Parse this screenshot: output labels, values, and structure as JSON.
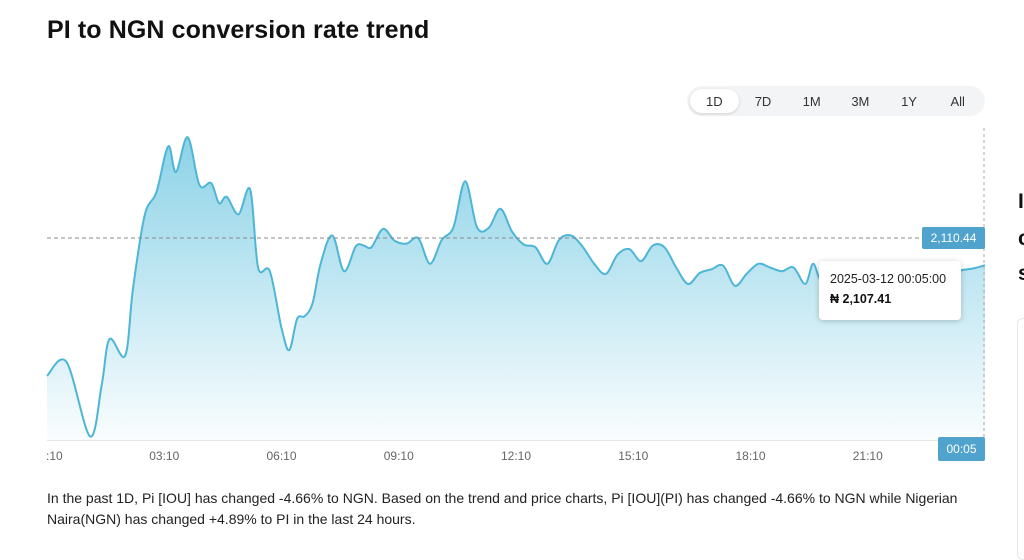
{
  "page": {
    "title": "PI to NGN conversion rate trend"
  },
  "range_tabs": [
    {
      "label": "1D",
      "active": true
    },
    {
      "label": "7D",
      "active": false
    },
    {
      "label": "1M",
      "active": false
    },
    {
      "label": "3M",
      "active": false
    },
    {
      "label": "1Y",
      "active": false
    },
    {
      "label": "All",
      "active": false
    }
  ],
  "tooltip": {
    "time": "2025-03-12 00:05:00",
    "value": "₦ 2,107.41"
  },
  "current_price_label": "2,110.44",
  "current_time_label": "00:05",
  "summary": "In the past 1D, Pi [IOU] has changed -4.66% to NGN. Based on the trend and price charts, Pi [IOU](PI) has changed -4.66% to NGN while Nigerian Naira(NGN) has changed +4.89% to PI in the last 24 hours.",
  "side_glyphs": [
    "I",
    "c",
    "s"
  ],
  "colors": {
    "line": "#4db6d6",
    "fill_top": "#86d0e6",
    "badge": "#4fa3cc"
  },
  "chart_data": {
    "type": "area",
    "title": "PI to NGN conversion rate trend",
    "xlabel": "",
    "ylabel": "",
    "x_tick_labels": [
      ":10",
      "03:10",
      "06:10",
      "09:10",
      "12:10",
      "15:10",
      "18:10",
      "21:10"
    ],
    "ylim": [
      1920,
      2260
    ],
    "current_value": 2110.44,
    "grid": false,
    "series": [
      {
        "name": "",
        "x": [
          0.0,
          0.5,
          1.1,
          1.4,
          1.6,
          2.0,
          2.2,
          2.5,
          2.8,
          3.1,
          3.3,
          3.6,
          3.9,
          4.2,
          4.4,
          4.6,
          4.9,
          5.2,
          5.4,
          5.7,
          6.0,
          6.2,
          6.4,
          6.6,
          6.8,
          7.0,
          7.3,
          7.6,
          7.9,
          8.1,
          8.3,
          8.6,
          8.9,
          9.2,
          9.5,
          9.8,
          10.1,
          10.4,
          10.7,
          11.0,
          11.3,
          11.6,
          11.9,
          12.2,
          12.5,
          12.8,
          13.1,
          13.4,
          13.7,
          14.0,
          14.3,
          14.6,
          14.9,
          15.2,
          15.5,
          15.8,
          16.1,
          16.4,
          16.7,
          17.0,
          17.3,
          17.6,
          17.9,
          18.2,
          18.5,
          18.8,
          19.1,
          19.4,
          19.6,
          19.8,
          20.1,
          20.4,
          20.7,
          21.0,
          21.3,
          21.6,
          21.9,
          22.2,
          22.5,
          22.8,
          23.1,
          23.4,
          23.7,
          24.0
        ],
        "values": [
          1990,
          2005,
          1924,
          1980,
          2030,
          2012,
          2085,
          2165,
          2190,
          2240,
          2212,
          2250,
          2198,
          2200,
          2178,
          2185,
          2166,
          2193,
          2108,
          2104,
          2042,
          2018,
          2052,
          2055,
          2070,
          2112,
          2143,
          2104,
          2131,
          2132,
          2130,
          2150,
          2137,
          2134,
          2140,
          2112,
          2138,
          2152,
          2202,
          2152,
          2151,
          2172,
          2147,
          2133,
          2130,
          2112,
          2138,
          2143,
          2131,
          2112,
          2101,
          2122,
          2128,
          2115,
          2132,
          2130,
          2108,
          2090,
          2102,
          2106,
          2110,
          2088,
          2101,
          2112,
          2108,
          2104,
          2108,
          2090,
          2112,
          2095,
          2108,
          2095,
          2104,
          2090,
          2110,
          2095,
          2100,
          2108,
          2101,
          2110,
          2103,
          2105,
          2107,
          2110.44
        ]
      }
    ]
  }
}
